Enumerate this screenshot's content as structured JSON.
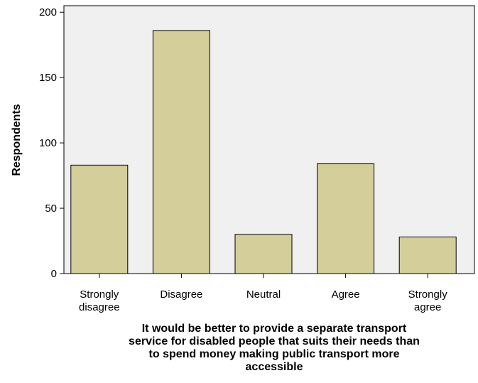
{
  "chart_data": {
    "type": "bar",
    "categories": [
      [
        "Strongly",
        "disagree"
      ],
      [
        "Disagree"
      ],
      [
        "Neutral"
      ],
      [
        "Agree"
      ],
      [
        "Strongly",
        "agree"
      ]
    ],
    "values": [
      83,
      186,
      30,
      84,
      28
    ],
    "ylabel": "Respondents",
    "xlabel": [
      "It would be better to provide a separate transport",
      "service for disabled people that suits their needs than",
      "to spend money making public transport more",
      "accessible"
    ],
    "ylim": [
      0,
      205
    ],
    "yticks": [
      0,
      50,
      100,
      150,
      200
    ],
    "grid": false,
    "colors": {
      "plot_background": "#f0f0f0",
      "bar_fill": "#d3ce9a",
      "bar_stroke": "#000000"
    }
  }
}
